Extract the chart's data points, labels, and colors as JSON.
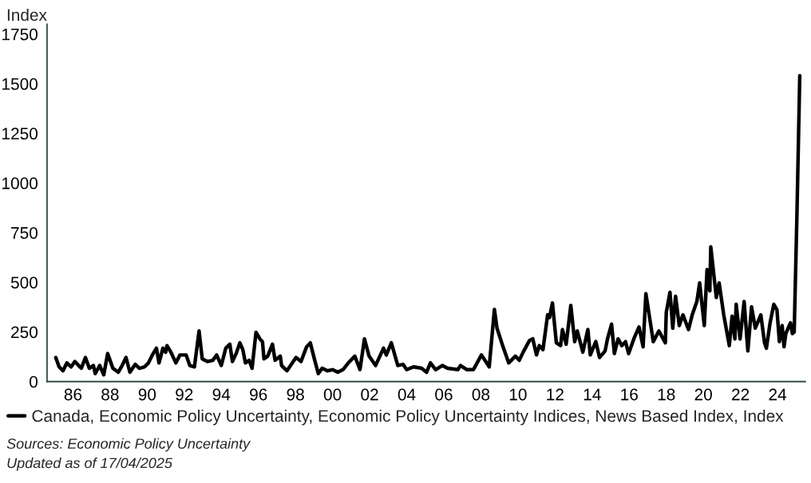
{
  "chart_data": {
    "type": "line",
    "ylabel": "Index",
    "xlim": [
      1984.6,
      2025.5
    ],
    "ylim": [
      0,
      1800
    ],
    "xticks": [
      {
        "value": 1986,
        "label": "86"
      },
      {
        "value": 1988,
        "label": "88"
      },
      {
        "value": 1990,
        "label": "90"
      },
      {
        "value": 1992,
        "label": "92"
      },
      {
        "value": 1994,
        "label": "94"
      },
      {
        "value": 1996,
        "label": "96"
      },
      {
        "value": 1998,
        "label": "98"
      },
      {
        "value": 2000,
        "label": "00"
      },
      {
        "value": 2002,
        "label": "02"
      },
      {
        "value": 2004,
        "label": "04"
      },
      {
        "value": 2006,
        "label": "06"
      },
      {
        "value": 2008,
        "label": "08"
      },
      {
        "value": 2010,
        "label": "10"
      },
      {
        "value": 2012,
        "label": "12"
      },
      {
        "value": 2014,
        "label": "14"
      },
      {
        "value": 2016,
        "label": "16"
      },
      {
        "value": 2018,
        "label": "18"
      },
      {
        "value": 2020,
        "label": "20"
      },
      {
        "value": 2022,
        "label": "22"
      },
      {
        "value": 2024,
        "label": "24"
      }
    ],
    "yticks": [
      0,
      250,
      500,
      750,
      1000,
      1250,
      1500,
      1750
    ],
    "grid": false,
    "legend": "bottom",
    "x": [
      1985.07,
      1985.25,
      1985.46,
      1985.67,
      1985.9,
      1986.1,
      1986.3,
      1986.45,
      1986.67,
      1986.88,
      1987.1,
      1987.2,
      1987.44,
      1987.66,
      1987.87,
      1988.15,
      1988.44,
      1988.65,
      1988.86,
      1989.07,
      1989.36,
      1989.57,
      1989.85,
      1990.07,
      1990.28,
      1990.5,
      1990.64,
      1990.85,
      1991.0,
      1991.07,
      1991.28,
      1991.55,
      1991.77,
      1992.1,
      1992.3,
      1992.55,
      1992.8,
      1992.97,
      1993.25,
      1993.54,
      1993.75,
      1994.0,
      1994.24,
      1994.46,
      1994.6,
      1994.8,
      1995.0,
      1995.16,
      1995.3,
      1995.5,
      1995.66,
      1995.87,
      1996.08,
      1996.22,
      1996.3,
      1996.5,
      1996.76,
      1996.9,
      1997.18,
      1997.25,
      1997.54,
      1998.03,
      1998.3,
      1998.6,
      1998.8,
      1999.0,
      1999.23,
      1999.44,
      1999.72,
      2000.0,
      2000.28,
      2000.56,
      2000.85,
      2001.2,
      2001.48,
      2001.72,
      2001.97,
      2002.32,
      2002.75,
      2002.9,
      2003.17,
      2003.52,
      2003.8,
      2004.0,
      2004.37,
      2004.8,
      2005.07,
      2005.28,
      2005.56,
      2005.92,
      2006.2,
      2006.76,
      2006.9,
      2007.25,
      2007.6,
      2008.03,
      2008.45,
      2008.73,
      2008.87,
      2009.15,
      2009.5,
      2009.86,
      2010.07,
      2010.28,
      2010.63,
      2010.8,
      2011.0,
      2011.15,
      2011.35,
      2011.6,
      2011.7,
      2011.86,
      2012.07,
      2012.3,
      2012.4,
      2012.6,
      2012.85,
      2013.06,
      2013.2,
      2013.5,
      2013.77,
      2013.9,
      2014.2,
      2014.4,
      2014.7,
      2014.83,
      2015.05,
      2015.2,
      2015.4,
      2015.6,
      2015.8,
      2015.97,
      2016.25,
      2016.53,
      2016.75,
      2016.9,
      2017.1,
      2017.3,
      2017.6,
      2017.95,
      2018.0,
      2018.2,
      2018.35,
      2018.5,
      2018.7,
      2018.9,
      2019.2,
      2019.4,
      2019.65,
      2019.8,
      2020.05,
      2020.2,
      2020.35,
      2020.4,
      2020.55,
      2020.7,
      2020.85,
      2021.1,
      2021.4,
      2021.55,
      2021.7,
      2021.77,
      2021.98,
      2022.2,
      2022.4,
      2022.6,
      2022.8,
      2023.1,
      2023.3,
      2023.4,
      2023.6,
      2023.8,
      2023.97,
      2024.1,
      2024.25,
      2024.35,
      2024.45,
      2024.7,
      2024.8,
      2024.9,
      2025.05,
      2025.2
    ],
    "series": [
      {
        "name": "Canada, Economic Policy Uncertainty, Economic Policy Uncertainty Indices, News Based Index, Index",
        "color": "#000000",
        "values": [
          121,
          74,
          54,
          94,
          74,
          101,
          81,
          67,
          121,
          67,
          81,
          40,
          81,
          34,
          141,
          67,
          47,
          81,
          121,
          47,
          87,
          67,
          74,
          94,
          134,
          168,
          94,
          168,
          148,
          181,
          148,
          94,
          134,
          134,
          81,
          74,
          255,
          114,
          101,
          107,
          134,
          81,
          168,
          188,
          101,
          141,
          195,
          161,
          94,
          107,
          67,
          248,
          215,
          201,
          114,
          128,
          188,
          107,
          128,
          81,
          54,
          121,
          101,
          175,
          195,
          121,
          40,
          67,
          54,
          60,
          47,
          60,
          94,
          128,
          60,
          215,
          128,
          81,
          168,
          134,
          195,
          81,
          87,
          60,
          74,
          67,
          47,
          94,
          60,
          81,
          67,
          60,
          81,
          60,
          60,
          134,
          74,
          363,
          269,
          188,
          94,
          128,
          107,
          148,
          208,
          215,
          134,
          181,
          161,
          336,
          322,
          396,
          195,
          181,
          262,
          188,
          383,
          201,
          255,
          148,
          262,
          134,
          201,
          121,
          154,
          215,
          289,
          141,
          215,
          181,
          201,
          141,
          215,
          275,
          175,
          443,
          322,
          201,
          255,
          195,
          349,
          450,
          269,
          430,
          282,
          336,
          262,
          336,
          403,
          497,
          282,
          564,
          457,
          678,
          551,
          423,
          497,
          336,
          181,
          329,
          215,
          389,
          215,
          403,
          154,
          376,
          269,
          336,
          195,
          168,
          296,
          389,
          362,
          201,
          282,
          175,
          242,
          296,
          242,
          250,
          850,
          1540
        ]
      }
    ],
    "annotations": [
      "Sources: Economic Policy Uncertainty",
      "Updated as of 17/04/2025"
    ]
  }
}
